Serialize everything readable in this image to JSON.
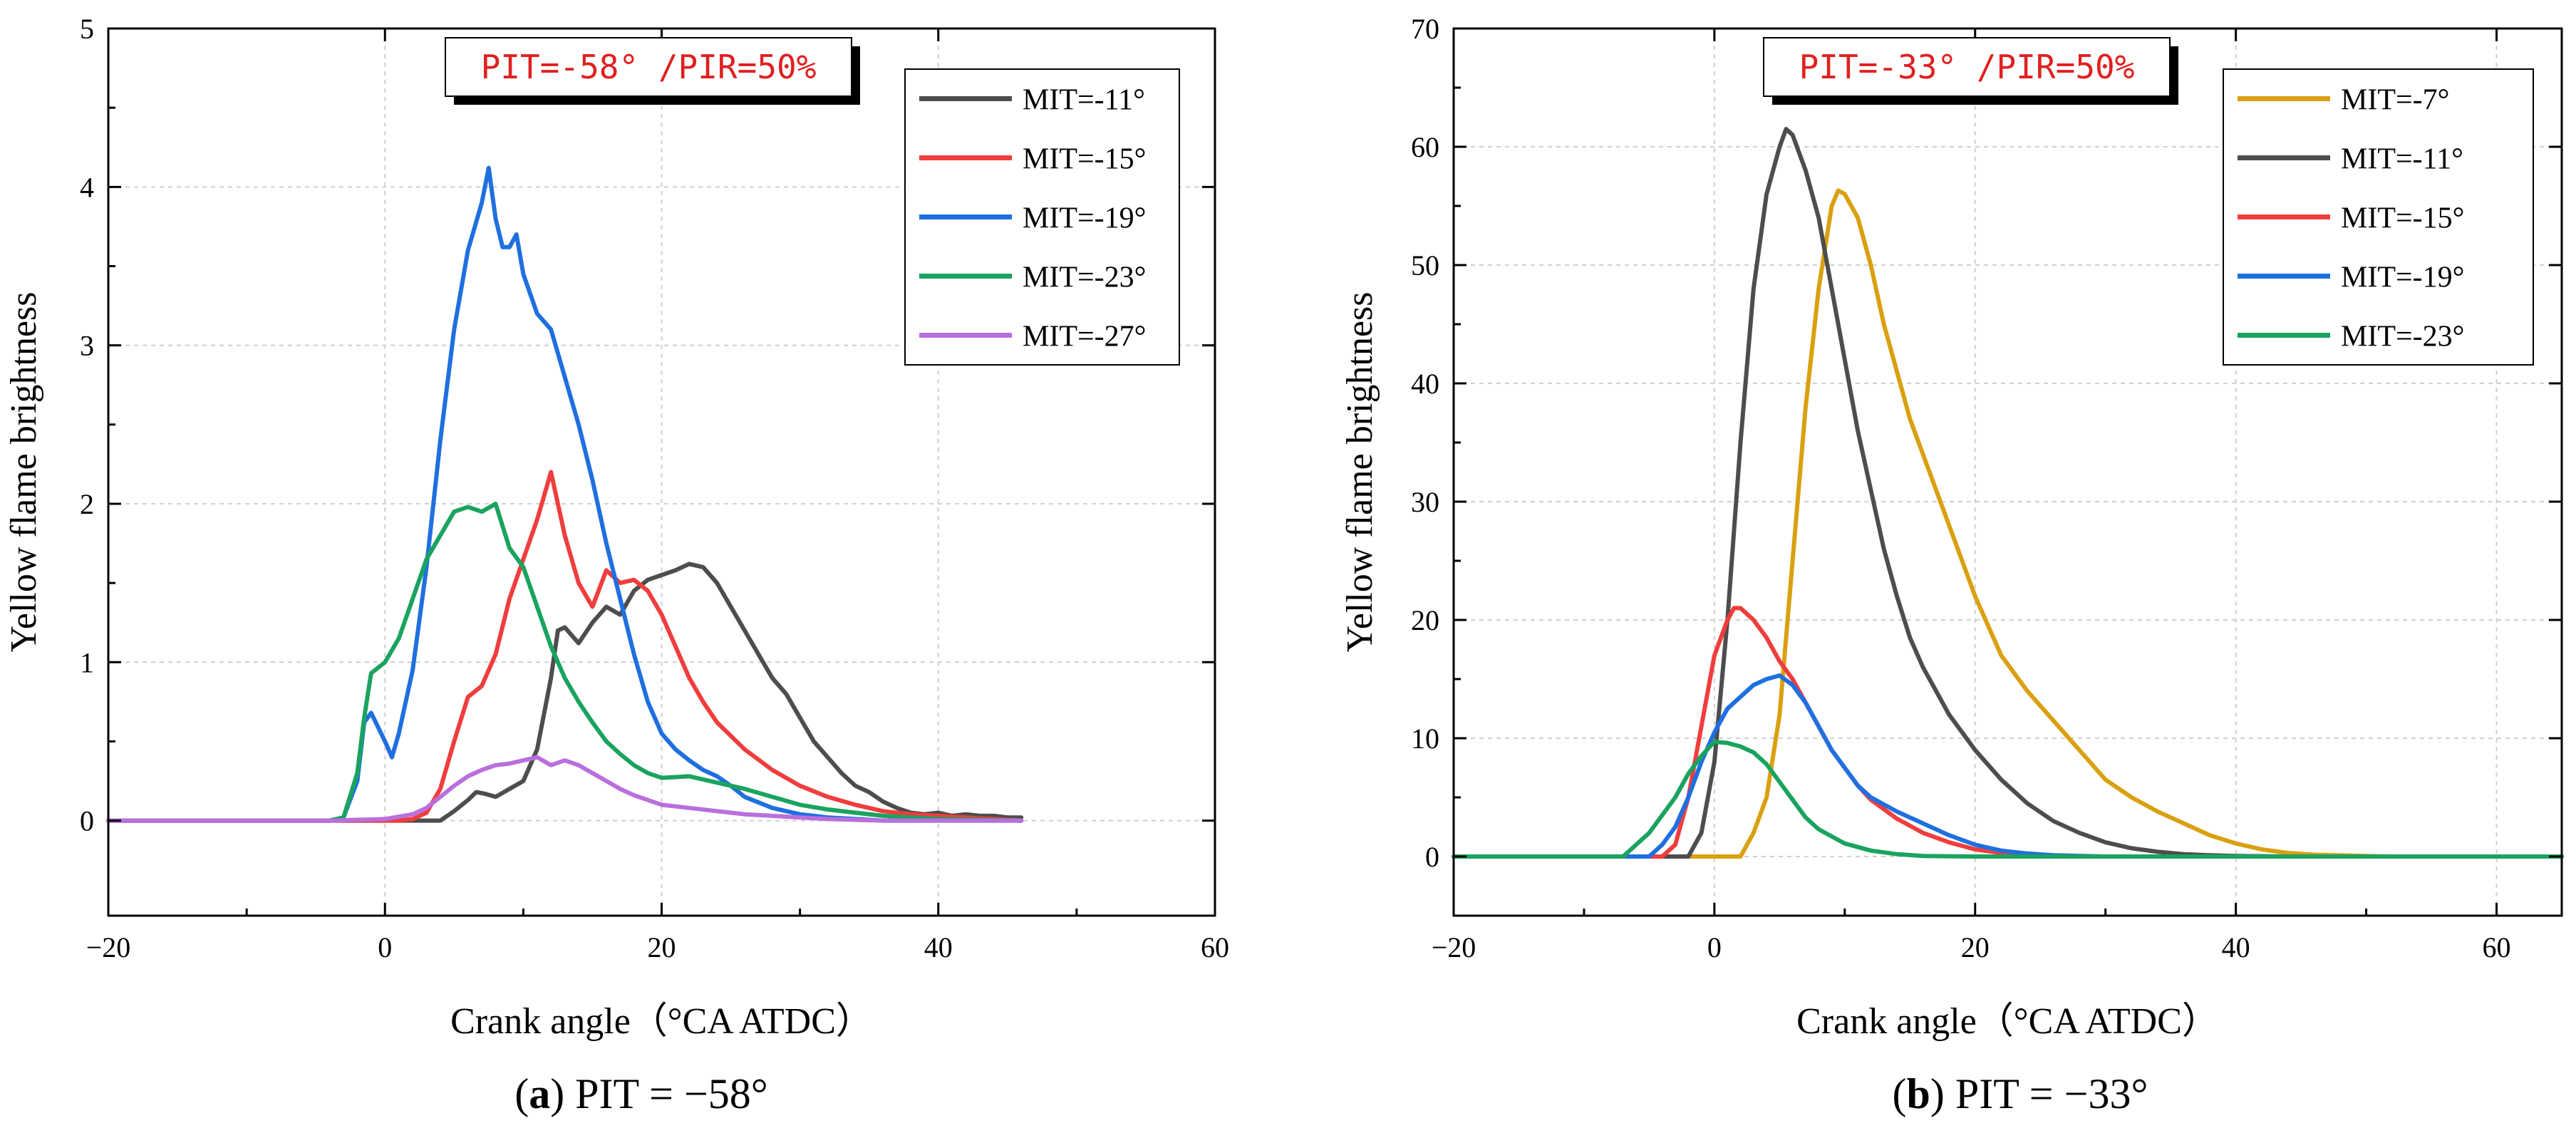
{
  "chart_data": [
    {
      "type": "line",
      "panel_label": "a",
      "caption": "PIT = −58°",
      "title_box": "PIT=-58° /PIR=50%",
      "xlabel": "Crank angle（°CA ATDC）",
      "ylabel": "Yellow flame brightness",
      "xlim": [
        -20,
        60
      ],
      "ylim": [
        -0.6,
        5
      ],
      "xticks": [
        -20,
        0,
        20,
        40,
        60
      ],
      "yticks": [
        0,
        1,
        2,
        3,
        4,
        5
      ],
      "grid": true,
      "legend_position": "top-right",
      "series": [
        {
          "name": "MIT=-11°",
          "color": "#4d4d4d",
          "x": [
            -20,
            4,
            5,
            6,
            6.6,
            7.2,
            8,
            9,
            10,
            11,
            12,
            12.5,
            13,
            14,
            15,
            16,
            17,
            18,
            19,
            20,
            21,
            22,
            23,
            24,
            25,
            26,
            27,
            28,
            29,
            30,
            31,
            32,
            33,
            34,
            35,
            36,
            37,
            38,
            39,
            40,
            41,
            42,
            43,
            44,
            45,
            46
          ],
          "y": [
            0,
            0,
            0.06,
            0.13,
            0.18,
            0.17,
            0.15,
            0.2,
            0.25,
            0.45,
            0.9,
            1.2,
            1.22,
            1.12,
            1.25,
            1.35,
            1.3,
            1.45,
            1.52,
            1.55,
            1.58,
            1.62,
            1.6,
            1.5,
            1.35,
            1.2,
            1.05,
            0.9,
            0.8,
            0.65,
            0.5,
            0.4,
            0.3,
            0.22,
            0.18,
            0.12,
            0.08,
            0.05,
            0.04,
            0.05,
            0.03,
            0.04,
            0.03,
            0.03,
            0.02,
            0.02
          ]
        },
        {
          "name": "MIT=-15°",
          "color": "#f03d3d",
          "x": [
            -20,
            0,
            1,
            2,
            3,
            4,
            5,
            6,
            7,
            8,
            9,
            10,
            11,
            12,
            13,
            14,
            15,
            16,
            17,
            18,
            19,
            20,
            21,
            22,
            23,
            24,
            26,
            28,
            30,
            32,
            34,
            36,
            38,
            40,
            42,
            44,
            46
          ],
          "y": [
            0,
            0,
            0,
            0.01,
            0.05,
            0.2,
            0.5,
            0.78,
            0.85,
            1.05,
            1.4,
            1.65,
            1.9,
            2.2,
            1.8,
            1.5,
            1.35,
            1.58,
            1.5,
            1.52,
            1.45,
            1.3,
            1.1,
            0.9,
            0.75,
            0.62,
            0.45,
            0.32,
            0.22,
            0.15,
            0.1,
            0.06,
            0.04,
            0.03,
            0.02,
            0.01,
            0
          ]
        },
        {
          "name": "MIT=-19°",
          "color": "#1f6fe0",
          "x": [
            -20,
            -4,
            -3,
            -2,
            -1.5,
            -1,
            0,
            0.5,
            1,
            2,
            3,
            4,
            5,
            6,
            7,
            7.5,
            8,
            8.5,
            9,
            9.5,
            10,
            11,
            12,
            13,
            14,
            15,
            16,
            17,
            18,
            19,
            20,
            21,
            22,
            23,
            24,
            25,
            26,
            28,
            30,
            32,
            34,
            36,
            40,
            46
          ],
          "y": [
            0,
            0,
            0.02,
            0.25,
            0.62,
            0.68,
            0.5,
            0.4,
            0.55,
            0.95,
            1.6,
            2.4,
            3.1,
            3.6,
            3.9,
            4.12,
            3.8,
            3.62,
            3.62,
            3.7,
            3.45,
            3.2,
            3.1,
            2.8,
            2.5,
            2.15,
            1.75,
            1.4,
            1.05,
            0.75,
            0.55,
            0.45,
            0.38,
            0.32,
            0.28,
            0.22,
            0.15,
            0.08,
            0.04,
            0.02,
            0.01,
            0,
            0,
            0
          ]
        },
        {
          "name": "MIT=-23°",
          "color": "#1aa35f",
          "x": [
            -20,
            -4,
            -3,
            -2,
            -1.5,
            -1,
            0,
            1,
            2,
            3,
            4,
            5,
            6,
            7,
            8,
            9,
            10,
            11,
            12,
            13,
            14,
            15,
            16,
            17,
            18,
            19,
            20,
            22,
            24,
            26,
            28,
            30,
            32,
            34,
            36,
            38,
            40,
            46
          ],
          "y": [
            0,
            0,
            0.02,
            0.3,
            0.65,
            0.93,
            1.0,
            1.15,
            1.4,
            1.65,
            1.8,
            1.95,
            1.98,
            1.95,
            2.0,
            1.72,
            1.6,
            1.35,
            1.1,
            0.9,
            0.75,
            0.62,
            0.5,
            0.42,
            0.35,
            0.3,
            0.27,
            0.28,
            0.24,
            0.2,
            0.15,
            0.1,
            0.07,
            0.05,
            0.03,
            0.02,
            0.01,
            0
          ]
        },
        {
          "name": "MIT=-27°",
          "color": "#b96fdd",
          "x": [
            -20,
            -4,
            0,
            2,
            3,
            4,
            5,
            6,
            7,
            8,
            9,
            10,
            11,
            12,
            13,
            14,
            15,
            16,
            17,
            18,
            19,
            20,
            22,
            24,
            26,
            28,
            30,
            32,
            36,
            40,
            46
          ],
          "y": [
            0,
            0,
            0.01,
            0.04,
            0.08,
            0.15,
            0.22,
            0.28,
            0.32,
            0.35,
            0.36,
            0.38,
            0.4,
            0.35,
            0.38,
            0.35,
            0.3,
            0.25,
            0.2,
            0.16,
            0.13,
            0.1,
            0.08,
            0.06,
            0.04,
            0.03,
            0.02,
            0.01,
            0,
            0,
            0
          ]
        }
      ]
    },
    {
      "type": "line",
      "panel_label": "b",
      "caption": "PIT = −33°",
      "title_box": "PIT=-33° /PIR=50%",
      "xlabel": "Crank angle（°CA ATDC）",
      "ylabel": "Yellow flame brightness",
      "xlim": [
        -20,
        65
      ],
      "ylim": [
        -5,
        70
      ],
      "xticks": [
        -20,
        0,
        20,
        40,
        60
      ],
      "yticks": [
        0,
        10,
        20,
        30,
        40,
        50,
        60,
        70
      ],
      "grid": true,
      "legend_position": "top-right",
      "series": [
        {
          "name": "MIT=-7°",
          "color": "#d9a010",
          "x": [
            -20,
            2,
            3,
            4,
            5,
            6,
            7,
            8,
            9,
            9.5,
            10,
            11,
            12,
            13,
            14,
            15,
            16,
            17,
            18,
            19,
            20,
            21,
            22,
            24,
            26,
            28,
            30,
            32,
            34,
            36,
            38,
            40,
            42,
            44,
            46,
            50,
            52,
            56,
            65
          ],
          "y": [
            0,
            0,
            2,
            5,
            12,
            25,
            38,
            48,
            55,
            56.3,
            56,
            54,
            50,
            45,
            41,
            37,
            34,
            31,
            28,
            25,
            22,
            19.5,
            17,
            14,
            11.5,
            9,
            6.5,
            5,
            3.8,
            2.8,
            1.8,
            1.1,
            0.6,
            0.3,
            0.15,
            0.05,
            0,
            0,
            0
          ]
        },
        {
          "name": "MIT=-11°",
          "color": "#4d4d4d",
          "x": [
            -20,
            -2,
            -1,
            0,
            1,
            2,
            3,
            4,
            5,
            5.5,
            6,
            7,
            8,
            9,
            10,
            11,
            12,
            13,
            14,
            15,
            16,
            17,
            18,
            19,
            20,
            22,
            24,
            26,
            28,
            30,
            32,
            34,
            36,
            38,
            40,
            44,
            65
          ],
          "y": [
            0,
            0,
            2,
            8,
            20,
            35,
            48,
            56,
            60,
            61.5,
            61,
            58,
            54,
            48,
            42,
            36,
            31,
            26,
            22,
            18.5,
            16,
            14,
            12,
            10.5,
            9,
            6.5,
            4.5,
            3,
            2,
            1.2,
            0.7,
            0.4,
            0.2,
            0.1,
            0.05,
            0,
            0
          ]
        },
        {
          "name": "MIT=-15°",
          "color": "#f03d3d",
          "x": [
            -20,
            -4,
            -3,
            -2,
            -1,
            0,
            1,
            1.5,
            2,
            3,
            4,
            5,
            6,
            7,
            8,
            9,
            10,
            11,
            12,
            14,
            16,
            18,
            20,
            22,
            24,
            26,
            30,
            65
          ],
          "y": [
            0,
            0,
            1,
            5,
            11,
            17,
            20,
            21,
            21,
            20,
            18.5,
            16.5,
            15,
            13,
            11,
            9,
            7.5,
            6,
            4.8,
            3.2,
            2,
            1.2,
            0.6,
            0.3,
            0.15,
            0.05,
            0,
            0
          ]
        },
        {
          "name": "MIT=-19°",
          "color": "#1f6fe0",
          "x": [
            -20,
            -5,
            -4,
            -3,
            -2,
            -1,
            0,
            1,
            2,
            3,
            4,
            5,
            6,
            7,
            8,
            9,
            10,
            11,
            12,
            14,
            16,
            18,
            20,
            22,
            24,
            26,
            30,
            65
          ],
          "y": [
            0,
            0,
            1,
            2.5,
            5,
            8,
            10.5,
            12.5,
            13.5,
            14.5,
            15,
            15.3,
            14.5,
            13,
            11,
            9,
            7.5,
            6,
            5,
            3.8,
            2.8,
            1.8,
            1.0,
            0.5,
            0.25,
            0.1,
            0,
            0
          ]
        },
        {
          "name": "MIT=-23°",
          "color": "#1aa35f",
          "x": [
            -20,
            -7,
            -6,
            -5,
            -4,
            -3,
            -2,
            -1,
            0,
            1,
            2,
            3,
            4,
            5,
            6,
            7,
            8,
            10,
            12,
            14,
            16,
            20,
            65
          ],
          "y": [
            0,
            0,
            1,
            2,
            3.5,
            5,
            7,
            8.5,
            9.7,
            9.6,
            9.3,
            8.8,
            7.8,
            6.3,
            4.8,
            3.3,
            2.3,
            1.1,
            0.5,
            0.2,
            0.05,
            0,
            0
          ]
        }
      ]
    }
  ]
}
